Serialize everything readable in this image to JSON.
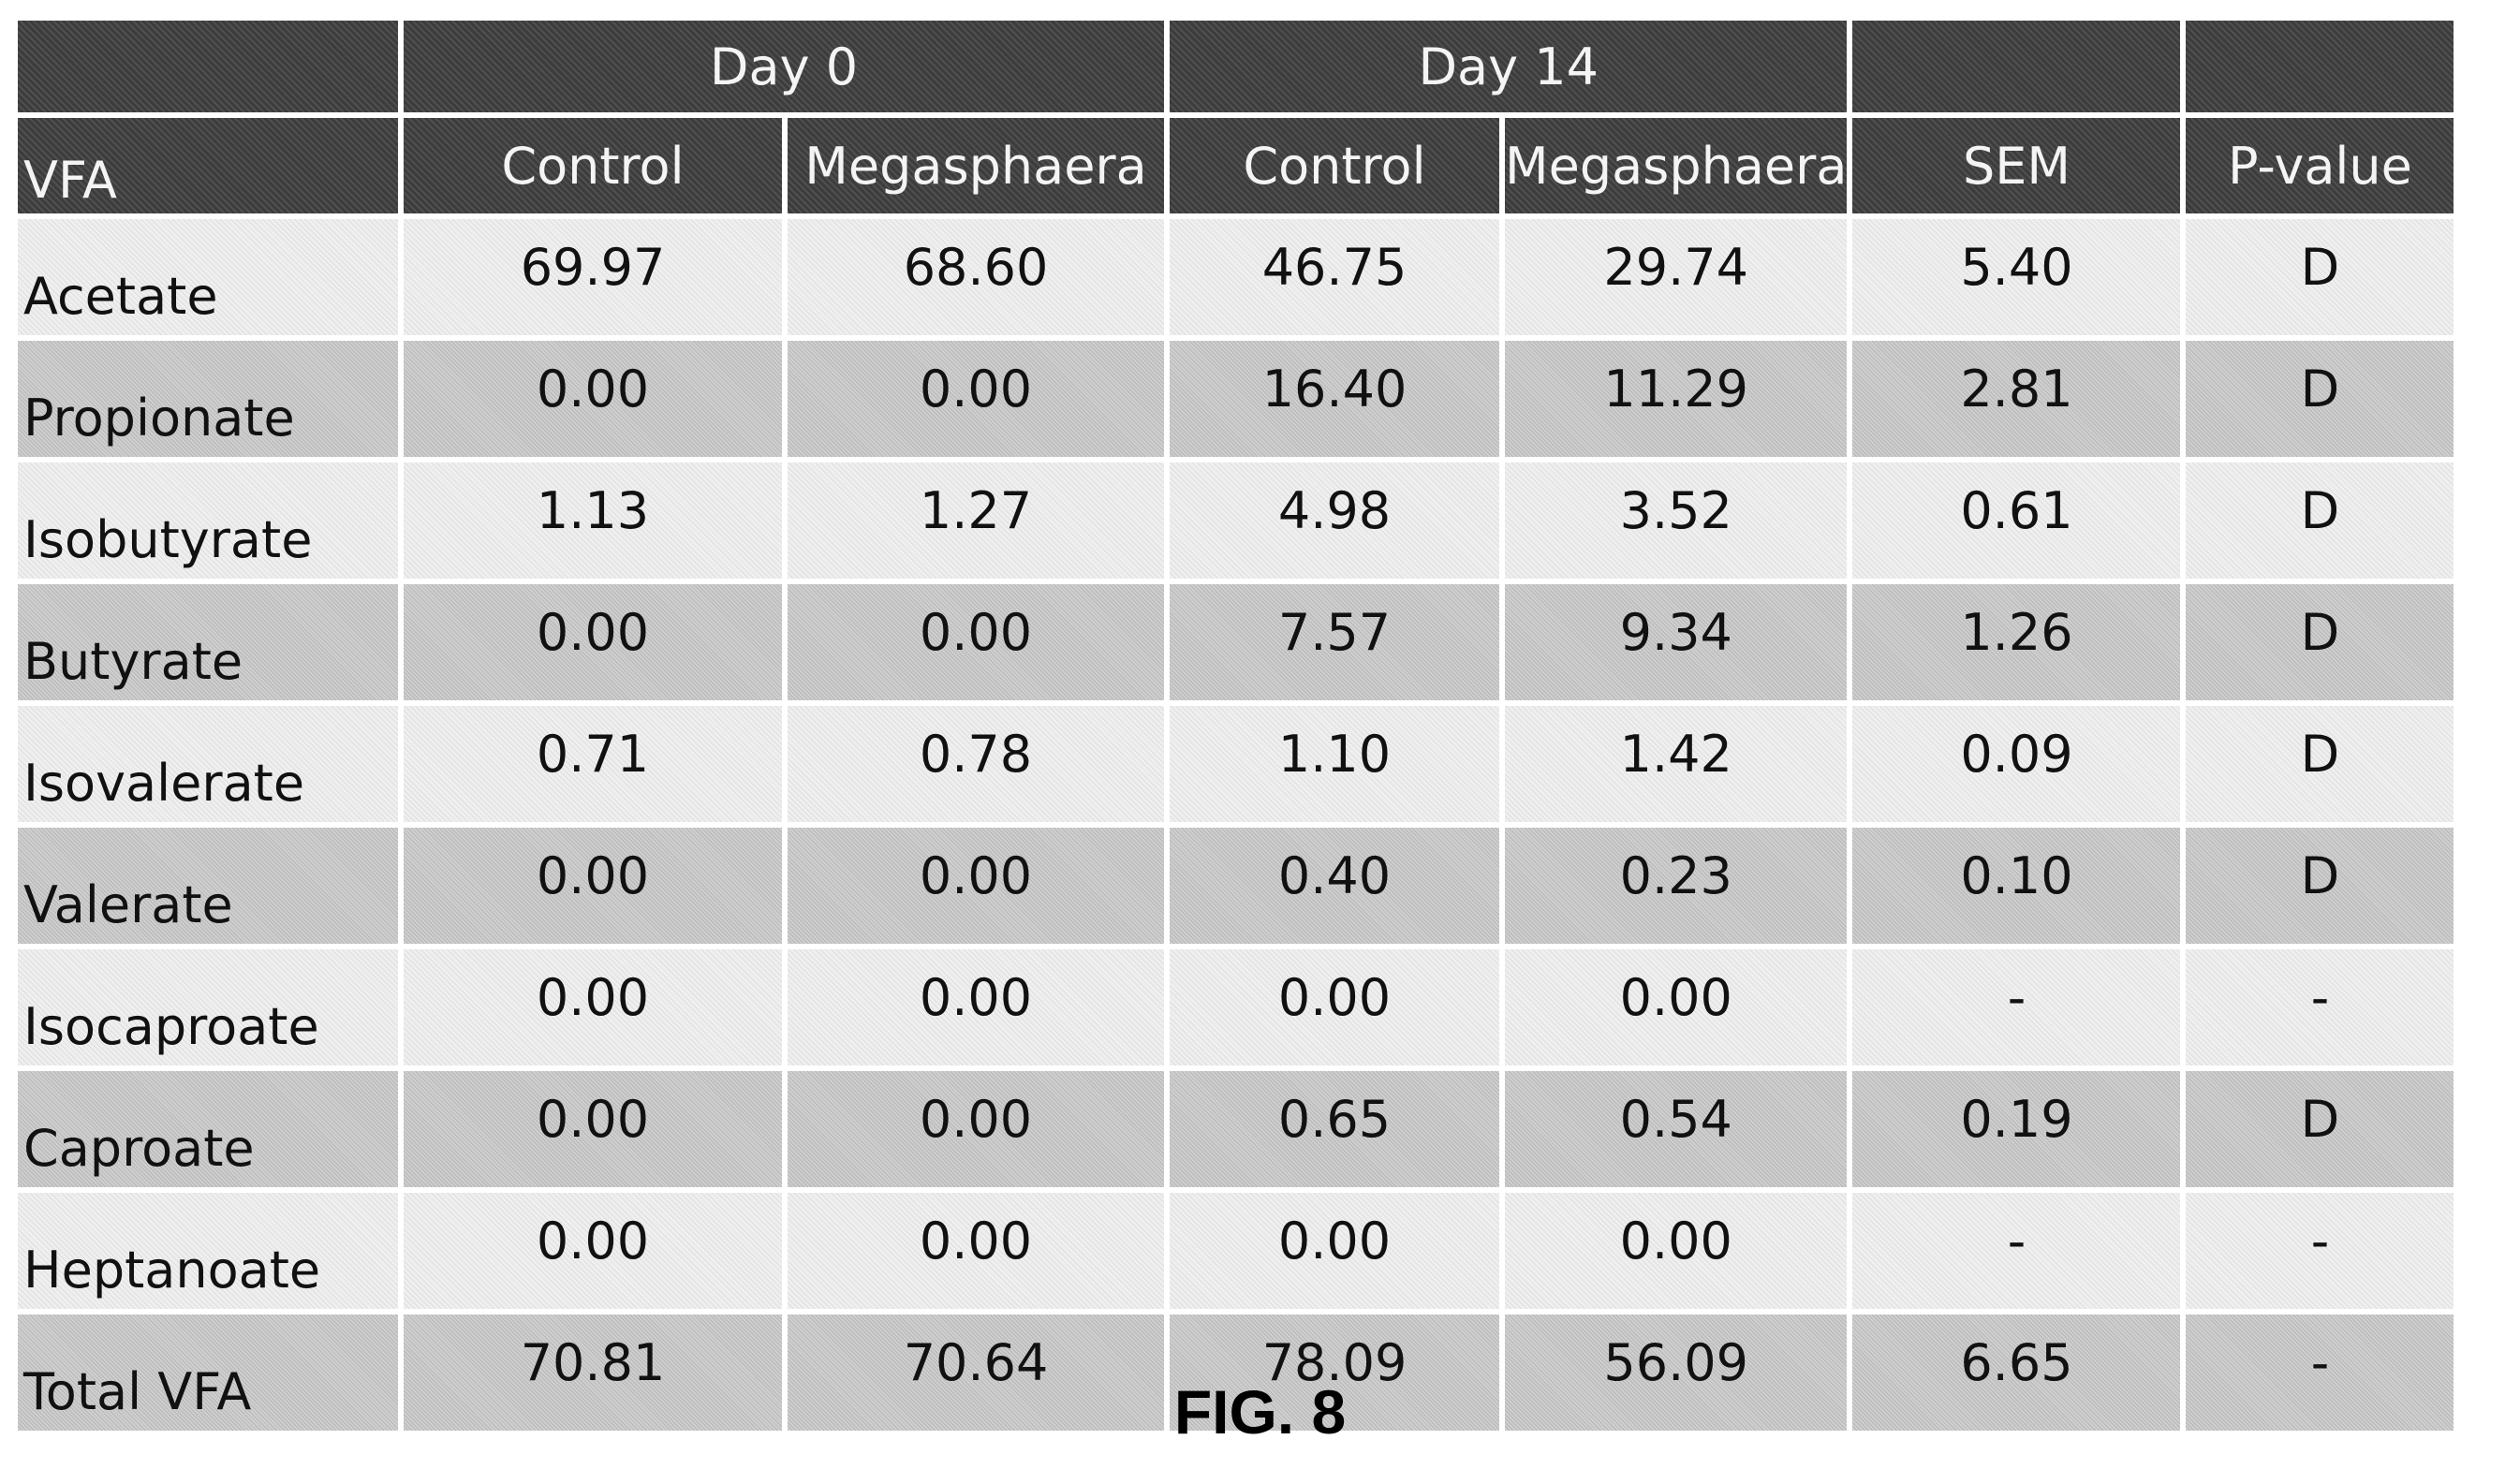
{
  "table": {
    "group_headers": {
      "day0": "Day 0",
      "day14": "Day 14"
    },
    "column_headers": {
      "vfa": "VFA",
      "day0_control": "Control",
      "day0_megasphaera": "Megasphaera",
      "day14_control": "Control",
      "day14_megasphaera": "Megasphaera",
      "sem": "SEM",
      "p_value": "P-value"
    },
    "rows": [
      {
        "vfa": "Acetate",
        "d0_control": "69.97",
        "d0_mega": "68.60",
        "d14_control": "46.75",
        "d14_mega": "29.74",
        "sem": "5.40",
        "p": "D"
      },
      {
        "vfa": "Propionate",
        "d0_control": "0.00",
        "d0_mega": "0.00",
        "d14_control": "16.40",
        "d14_mega": "11.29",
        "sem": "2.81",
        "p": "D"
      },
      {
        "vfa": "Isobutyrate",
        "d0_control": "1.13",
        "d0_mega": "1.27",
        "d14_control": "4.98",
        "d14_mega": "3.52",
        "sem": "0.61",
        "p": "D"
      },
      {
        "vfa": "Butyrate",
        "d0_control": "0.00",
        "d0_mega": "0.00",
        "d14_control": "7.57",
        "d14_mega": "9.34",
        "sem": "1.26",
        "p": "D"
      },
      {
        "vfa": "Isovalerate",
        "d0_control": "0.71",
        "d0_mega": "0.78",
        "d14_control": "1.10",
        "d14_mega": "1.42",
        "sem": "0.09",
        "p": "D"
      },
      {
        "vfa": "Valerate",
        "d0_control": "0.00",
        "d0_mega": "0.00",
        "d14_control": "0.40",
        "d14_mega": "0.23",
        "sem": "0.10",
        "p": "D"
      },
      {
        "vfa": "Isocaproate",
        "d0_control": "0.00",
        "d0_mega": "0.00",
        "d14_control": "0.00",
        "d14_mega": "0.00",
        "sem": "-",
        "p": "-"
      },
      {
        "vfa": "Caproate",
        "d0_control": "0.00",
        "d0_mega": "0.00",
        "d14_control": "0.65",
        "d14_mega": "0.54",
        "sem": "0.19",
        "p": "D"
      },
      {
        "vfa": "Heptanoate",
        "d0_control": "0.00",
        "d0_mega": "0.00",
        "d14_control": "0.00",
        "d14_mega": "0.00",
        "sem": "-",
        "p": "-"
      },
      {
        "vfa": "Total VFA",
        "d0_control": "70.81",
        "d0_mega": "70.64",
        "d14_control": "78.09",
        "d14_mega": "56.09",
        "sem": "6.65",
        "p": "-"
      }
    ]
  },
  "caption": "FIG. 8"
}
